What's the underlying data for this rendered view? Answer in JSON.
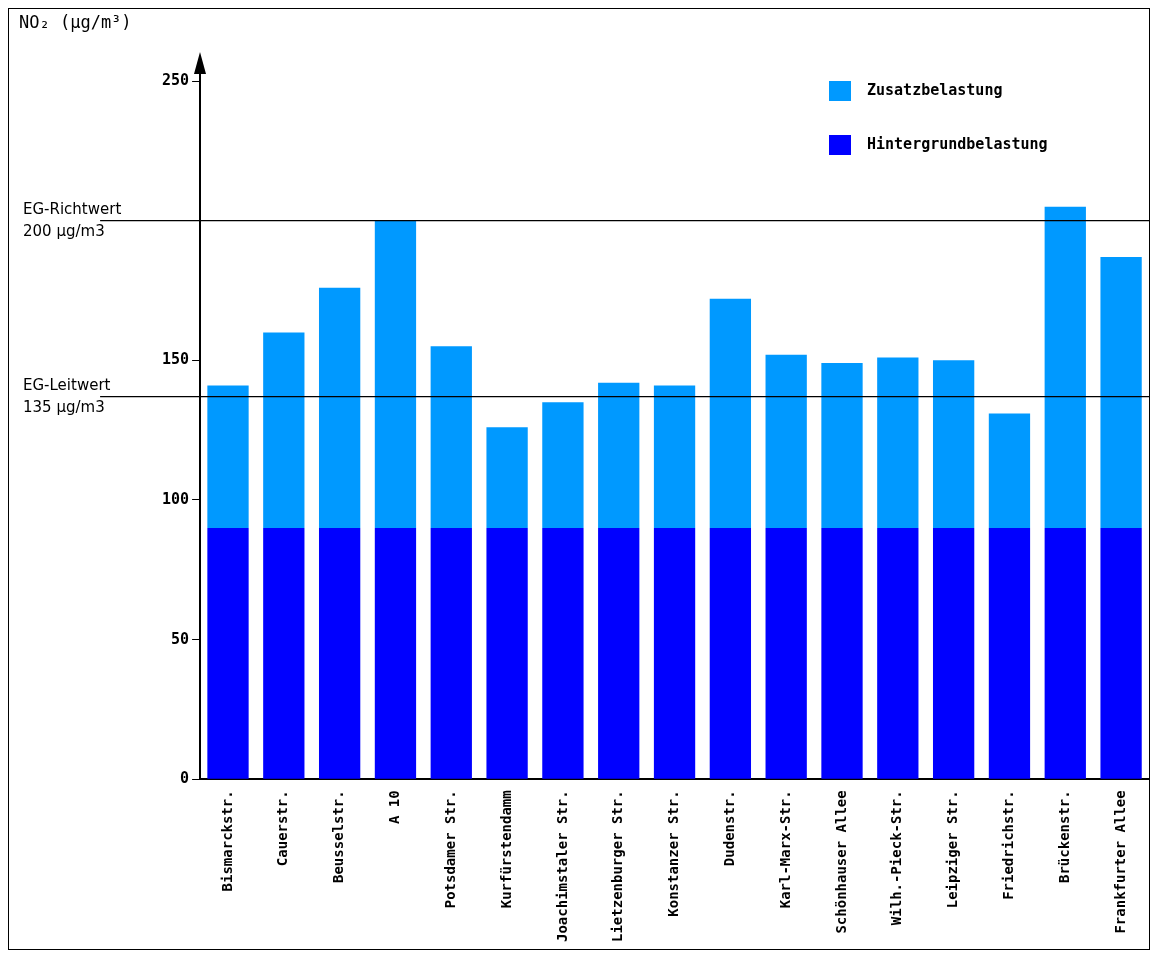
{
  "chart_data": {
    "type": "bar",
    "stacked": true,
    "ylabel": "NO₂ (µg/m³)",
    "categories": [
      "Bismarckstr.",
      "Cauerstr.",
      "Beusselstr.",
      "A 10",
      "Potsdamer Str.",
      "Kurfürstendamm",
      "Joachimstaler Str.",
      "Lietzenburger Str.",
      "Konstanzer Str.",
      "Dudenstr.",
      "Karl-Marx-Str.",
      "Schönhauser Allee",
      "Wilh.-Pieck-Str.",
      "Leipziger Str.",
      "Friedrichstr.",
      "Brückenstr.",
      "Frankfurter Allee"
    ],
    "series": [
      {
        "name": "Hintergrundbelastung",
        "color": "#0000ff",
        "values": [
          90,
          90,
          90,
          90,
          90,
          90,
          90,
          90,
          90,
          90,
          90,
          90,
          90,
          90,
          90,
          90,
          90
        ]
      },
      {
        "name": "Zusatzbelastung",
        "color": "#0099ff",
        "values": [
          51,
          70,
          86,
          110,
          65,
          36,
          45,
          52,
          51,
          82,
          62,
          59,
          61,
          60,
          41,
          115,
          97
        ]
      }
    ],
    "ylim": [
      0,
      250
    ],
    "yticks": [
      0,
      50,
      100,
      150,
      {
        "value": 200,
        "label": null
      },
      250
    ],
    "grid": false,
    "legend": "top right",
    "ref_lines": [
      {
        "axis": "y",
        "value": 200,
        "label": "EG-Richtwert\n200 µg/m3",
        "color": "#000000"
      },
      {
        "axis": "y",
        "value": 137,
        "label": "EG-Leitwert\n135 µg/m3",
        "color": "#000000"
      }
    ]
  }
}
